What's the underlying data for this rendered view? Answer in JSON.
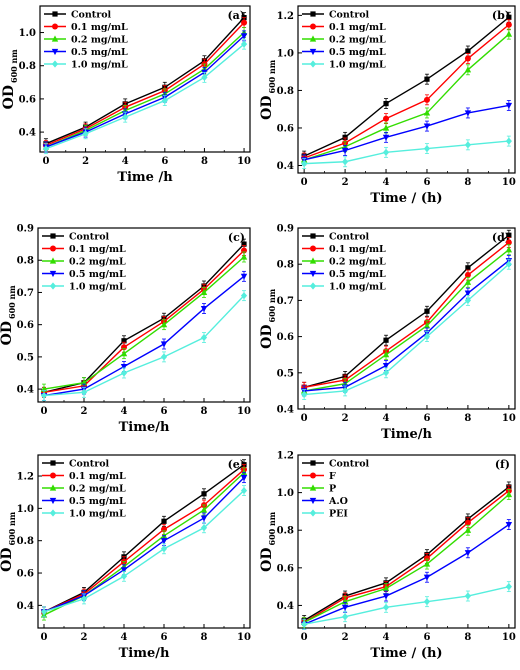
{
  "colors": [
    "#000000",
    "#ff0000",
    "#33dd00",
    "#0000ff",
    "#55eedd"
  ],
  "chart_data": [
    {
      "type": "line",
      "panel_label": "(a)",
      "xlabel": "Time /h",
      "ylabel": "OD",
      "ylabel_sub": "600 nm",
      "x": [
        0,
        2,
        4,
        6,
        8,
        10
      ],
      "xticks": [
        "0",
        "2",
        "4",
        "6",
        "8",
        "10"
      ],
      "ylim": [
        0.28,
        1.16
      ],
      "yticks": [
        0.4,
        0.6,
        0.8,
        1.0
      ],
      "ytick_labels": [
        "0.4",
        "0.6",
        "0.8",
        "1.0"
      ],
      "series": [
        {
          "name": "Control",
          "values": [
            0.33,
            0.43,
            0.57,
            0.67,
            0.83,
            1.09
          ]
        },
        {
          "name": "0.1 mg/mL",
          "values": [
            0.32,
            0.42,
            0.55,
            0.65,
            0.81,
            1.06
          ]
        },
        {
          "name": "0.2 mg/mL",
          "values": [
            0.31,
            0.41,
            0.53,
            0.63,
            0.78,
            1.0
          ]
        },
        {
          "name": "0.5 mg/mL",
          "values": [
            0.31,
            0.4,
            0.51,
            0.61,
            0.76,
            0.98
          ]
        },
        {
          "name": "1.0 mg/mL",
          "values": [
            0.3,
            0.39,
            0.49,
            0.59,
            0.73,
            0.93
          ]
        }
      ]
    },
    {
      "type": "line",
      "panel_label": "(b)",
      "xlabel": "Time / (h)",
      "ylabel": "OD",
      "ylabel_sub": "600 nm",
      "x": [
        0,
        2,
        4,
        6,
        8,
        10
      ],
      "xticks": [
        "0",
        "2",
        "4",
        "6",
        "8",
        "10"
      ],
      "ylim": [
        0.36,
        1.25
      ],
      "yticks": [
        0.4,
        0.6,
        0.8,
        1.0,
        1.2
      ],
      "ytick_labels": [
        "0.4",
        "0.6",
        "0.8",
        "1.0",
        "1.2"
      ],
      "series": [
        {
          "name": "Control",
          "values": [
            0.45,
            0.55,
            0.73,
            0.86,
            1.01,
            1.19
          ]
        },
        {
          "name": "0.1 mg/mL",
          "values": [
            0.44,
            0.52,
            0.65,
            0.75,
            0.97,
            1.15
          ]
        },
        {
          "name": "0.2 mg/mL",
          "values": [
            0.43,
            0.5,
            0.6,
            0.68,
            0.91,
            1.1
          ]
        },
        {
          "name": "0.5 mg/mL",
          "values": [
            0.43,
            0.48,
            0.55,
            0.61,
            0.68,
            0.72
          ]
        },
        {
          "name": "1.0 mg/mL",
          "values": [
            0.41,
            0.42,
            0.47,
            0.49,
            0.51,
            0.53
          ]
        }
      ]
    },
    {
      "type": "line",
      "panel_label": "(c)",
      "xlabel": "Time/h",
      "ylabel": "OD",
      "ylabel_sub": "600 nm",
      "x": [
        0,
        2,
        4,
        6,
        8,
        10
      ],
      "xticks": [
        "0",
        "2",
        "4",
        "6",
        "8",
        "10"
      ],
      "ylim": [
        0.36,
        0.9
      ],
      "yticks": [
        0.4,
        0.5,
        0.6,
        0.7,
        0.8,
        0.9
      ],
      "ytick_labels": [
        "0.4",
        "0.5",
        "0.6",
        "0.7",
        "0.8",
        "0.9"
      ],
      "series": [
        {
          "name": "Control",
          "values": [
            0.39,
            0.42,
            0.55,
            0.62,
            0.72,
            0.85
          ]
        },
        {
          "name": "0.1 mg/mL",
          "values": [
            0.39,
            0.41,
            0.53,
            0.61,
            0.71,
            0.83
          ]
        },
        {
          "name": "0.2 mg/mL",
          "values": [
            0.4,
            0.42,
            0.51,
            0.6,
            0.7,
            0.81
          ]
        },
        {
          "name": "0.5 mg/mL",
          "values": [
            0.38,
            0.4,
            0.47,
            0.54,
            0.65,
            0.75
          ]
        },
        {
          "name": "1.0 mg/mL",
          "values": [
            0.38,
            0.39,
            0.45,
            0.5,
            0.56,
            0.69
          ]
        }
      ]
    },
    {
      "type": "line",
      "panel_label": "(d)",
      "xlabel": "Time/h",
      "ylabel": "OD",
      "ylabel_sub": "600 nm",
      "x": [
        0,
        2,
        4,
        6,
        8,
        10
      ],
      "xticks": [
        "0",
        "2",
        "4",
        "6",
        "8",
        "10"
      ],
      "ylim": [
        0.4,
        0.9
      ],
      "yticks": [
        0.4,
        0.5,
        0.6,
        0.7,
        0.8,
        0.9
      ],
      "ytick_labels": [
        "0.4",
        "0.5",
        "0.6",
        "0.7",
        "0.8",
        "0.9"
      ],
      "series": [
        {
          "name": "Control",
          "values": [
            0.46,
            0.49,
            0.59,
            0.67,
            0.79,
            0.88
          ]
        },
        {
          "name": "0.1 mg/mL",
          "values": [
            0.46,
            0.48,
            0.56,
            0.64,
            0.77,
            0.86
          ]
        },
        {
          "name": "0.2 mg/mL",
          "values": [
            0.45,
            0.47,
            0.55,
            0.63,
            0.75,
            0.84
          ]
        },
        {
          "name": "0.5 mg/mL",
          "values": [
            0.45,
            0.46,
            0.52,
            0.61,
            0.72,
            0.81
          ]
        },
        {
          "name": "1.0 mg/mL",
          "values": [
            0.44,
            0.45,
            0.5,
            0.6,
            0.7,
            0.8
          ]
        }
      ]
    },
    {
      "type": "line",
      "panel_label": "(e)",
      "xlabel": "Time/h",
      "ylabel": "OD",
      "ylabel_sub": "600 nm",
      "x": [
        0,
        2,
        4,
        6,
        8,
        10
      ],
      "xticks": [
        "0",
        "2",
        "4",
        "6",
        "8",
        "10"
      ],
      "ylim": [
        0.26,
        1.33
      ],
      "yticks": [
        0.4,
        0.6,
        0.8,
        1.0,
        1.2
      ],
      "ytick_labels": [
        "0.4",
        "0.6",
        "0.8",
        "1.0",
        "1.2"
      ],
      "series": [
        {
          "name": "Control",
          "values": [
            0.36,
            0.48,
            0.7,
            0.92,
            1.09,
            1.27
          ]
        },
        {
          "name": "0.1 mg/mL",
          "values": [
            0.36,
            0.47,
            0.67,
            0.87,
            1.02,
            1.24
          ]
        },
        {
          "name": "0.2 mg/mL",
          "values": [
            0.34,
            0.46,
            0.64,
            0.83,
            0.99,
            1.22
          ]
        },
        {
          "name": "0.5 mg/mL",
          "values": [
            0.36,
            0.46,
            0.62,
            0.8,
            0.94,
            1.19
          ]
        },
        {
          "name": "1.0 mg/mL",
          "values": [
            0.36,
            0.44,
            0.58,
            0.75,
            0.88,
            1.11
          ]
        }
      ]
    },
    {
      "type": "line",
      "panel_label": "(f)",
      "xlabel": "Time / (h)",
      "ylabel": "OD",
      "ylabel_sub": "600 nm",
      "x": [
        0,
        2,
        4,
        6,
        8,
        10
      ],
      "xticks": [
        "0",
        "2",
        "4",
        "6",
        "8",
        "10"
      ],
      "ylim": [
        0.28,
        1.2
      ],
      "yticks": [
        0.4,
        0.6,
        0.8,
        1.0,
        1.2
      ],
      "ytick_labels": [
        "0.4",
        "0.6",
        "0.8",
        "1.0",
        "1.2"
      ],
      "series": [
        {
          "name": "Control",
          "values": [
            0.32,
            0.45,
            0.52,
            0.67,
            0.86,
            1.03
          ]
        },
        {
          "name": "F",
          "values": [
            0.31,
            0.44,
            0.5,
            0.65,
            0.84,
            1.01
          ]
        },
        {
          "name": "P",
          "values": [
            0.31,
            0.42,
            0.49,
            0.62,
            0.8,
            0.99
          ]
        },
        {
          "name": "A.O",
          "values": [
            0.3,
            0.39,
            0.45,
            0.55,
            0.68,
            0.83
          ]
        },
        {
          "name": "PEI",
          "values": [
            0.3,
            0.34,
            0.39,
            0.42,
            0.45,
            0.5
          ]
        }
      ]
    }
  ]
}
